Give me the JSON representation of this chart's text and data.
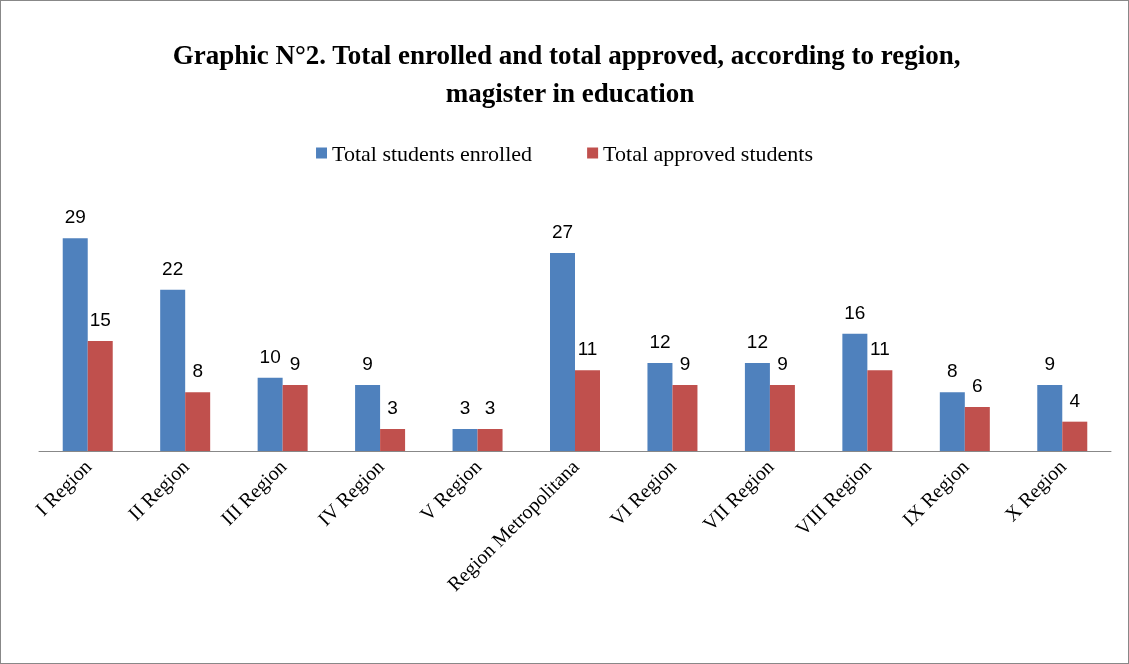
{
  "chart_data": {
    "type": "bar",
    "title": "Graphic N°2. Total enrolled and total approved, according to region, magister in education",
    "categories": [
      "I Region",
      "II Region",
      "III Region",
      "IV Region",
      "V Region",
      "Region Metropolitana",
      "VI Region",
      "VII Region",
      "VIII Region",
      "IX Region",
      "X Region"
    ],
    "series": [
      {
        "name": "Total students enrolled",
        "color": "#4f81bd",
        "values": [
          29,
          22,
          10,
          9,
          3,
          27,
          12,
          12,
          16,
          8,
          9
        ]
      },
      {
        "name": "Total approved students",
        "color": "#c0504d",
        "values": [
          15,
          8,
          9,
          3,
          3,
          11,
          9,
          9,
          11,
          6,
          4
        ]
      }
    ],
    "data_labels": true,
    "legend": "top"
  }
}
